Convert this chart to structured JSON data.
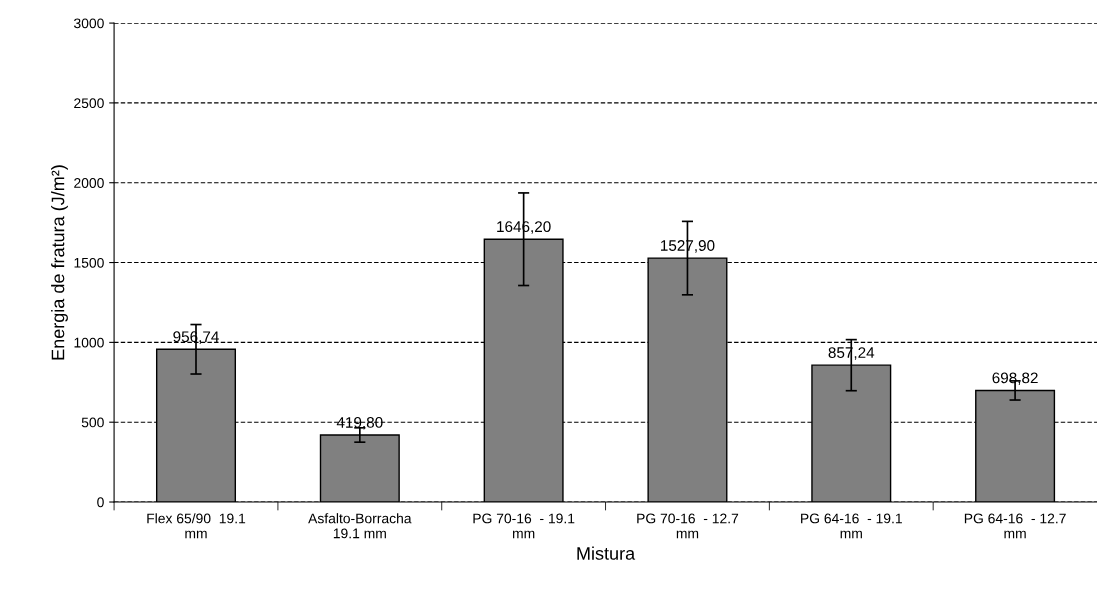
{
  "chart_data": {
    "type": "bar",
    "xlabel": "Mistura",
    "ylabel": "Energia de fratura (J/m²)",
    "categories": [
      "Flex 65/90  19.1\nmm",
      "Asfalto-Borracha\n19.1 mm",
      "PG 70-16  - 19.1\nmm",
      "PG 70-16  - 12.7\nmm",
      "PG 64-16  - 19.1\nmm",
      "PG 64-16  - 12.7\nmm"
    ],
    "values": [
      956.74,
      419.8,
      1646.2,
      1527.9,
      857.24,
      698.82
    ],
    "value_labels": [
      "956,74",
      "419,80",
      "1646,20",
      "1527,90",
      "857,24",
      "698,82"
    ],
    "errors": [
      155,
      45,
      290,
      230,
      160,
      60
    ],
    "color": "#808080",
    "ylim": [
      0,
      3000
    ],
    "yticks": [
      0,
      500,
      1000,
      1500,
      2000,
      2500,
      3000
    ],
    "grid": "y",
    "legend": false
  }
}
